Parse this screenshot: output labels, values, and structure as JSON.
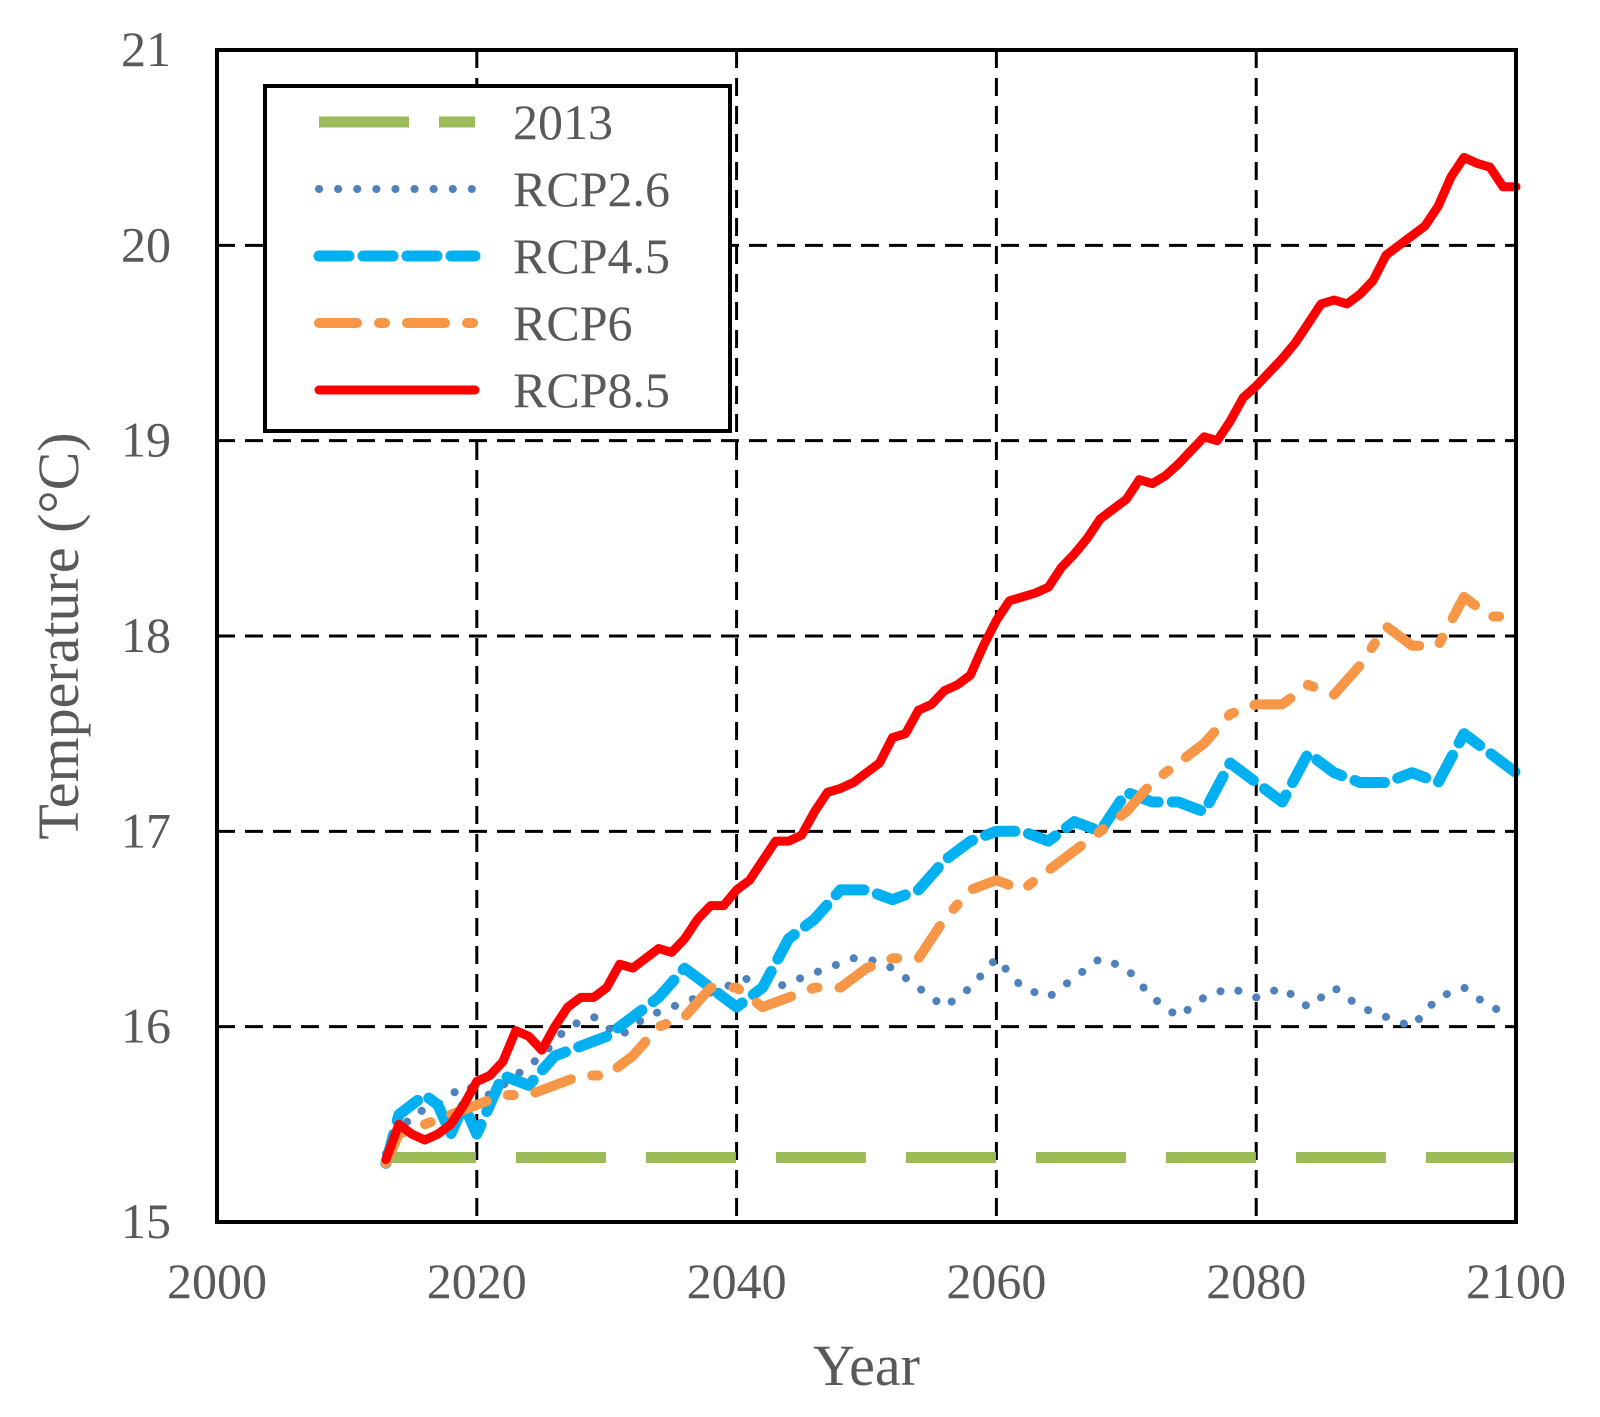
{
  "chart_data": {
    "type": "line",
    "title": "",
    "xlabel": "Year",
    "ylabel": "Temperature (°C)",
    "xlim": [
      2000,
      2100
    ],
    "ylim": [
      15,
      21
    ],
    "xticks": [
      2000,
      2020,
      2040,
      2060,
      2080,
      2100
    ],
    "yticks": [
      15,
      16,
      17,
      18,
      19,
      20,
      21
    ],
    "grid": true,
    "legend_position": "top-left",
    "series": [
      {
        "name": "2013",
        "color": "#9BBB59",
        "dash": "long-dash",
        "x": [
          2013,
          2100
        ],
        "y": [
          15.33,
          15.33
        ]
      },
      {
        "name": "RCP2.6",
        "color": "#4F81BD",
        "dash": "dotted",
        "x": [
          2013,
          2015,
          2017,
          2019,
          2021,
          2023,
          2025,
          2027,
          2029,
          2031,
          2033,
          2035,
          2037,
          2039,
          2041,
          2043,
          2045,
          2047,
          2049,
          2050,
          2052,
          2054,
          2056,
          2058,
          2060,
          2062,
          2064,
          2066,
          2068,
          2070,
          2072,
          2074,
          2076,
          2078,
          2080,
          2082,
          2084,
          2086,
          2088,
          2090,
          2092,
          2094,
          2096,
          2098,
          2099
        ],
        "y": [
          15.35,
          15.55,
          15.6,
          15.7,
          15.65,
          15.75,
          15.85,
          16.0,
          16.05,
          15.95,
          16.05,
          16.1,
          16.15,
          16.2,
          16.25,
          16.2,
          16.25,
          16.3,
          16.35,
          16.35,
          16.3,
          16.2,
          16.1,
          16.2,
          16.35,
          16.2,
          16.15,
          16.25,
          16.35,
          16.3,
          16.15,
          16.05,
          16.15,
          16.2,
          16.15,
          16.2,
          16.1,
          16.2,
          16.1,
          16.05,
          16.0,
          16.15,
          16.2,
          16.1,
          16.08
        ]
      },
      {
        "name": "RCP4.5",
        "color": "#00B0F0",
        "dash": "dashed",
        "x": [
          2013,
          2014,
          2016,
          2017,
          2018,
          2019,
          2020,
          2022,
          2024,
          2026,
          2028,
          2030,
          2032,
          2034,
          2036,
          2038,
          2040,
          2042,
          2044,
          2046,
          2048,
          2050,
          2052,
          2054,
          2056,
          2058,
          2060,
          2062,
          2064,
          2066,
          2068,
          2070,
          2072,
          2074,
          2076,
          2078,
          2080,
          2082,
          2084,
          2086,
          2088,
          2090,
          2092,
          2094,
          2096,
          2098,
          2100
        ],
        "y": [
          15.3,
          15.55,
          15.65,
          15.6,
          15.45,
          15.6,
          15.45,
          15.75,
          15.7,
          15.85,
          15.9,
          15.95,
          16.05,
          16.15,
          16.3,
          16.2,
          16.1,
          16.2,
          16.45,
          16.55,
          16.7,
          16.7,
          16.65,
          16.7,
          16.85,
          16.95,
          17.0,
          17.0,
          16.95,
          17.05,
          17.0,
          17.2,
          17.15,
          17.15,
          17.1,
          17.35,
          17.25,
          17.15,
          17.4,
          17.3,
          17.25,
          17.25,
          17.3,
          17.25,
          17.5,
          17.4,
          17.3
        ]
      },
      {
        "name": "RCP6",
        "color": "#F79646",
        "dash": "dash-dot",
        "x": [
          2013,
          2014,
          2016,
          2018,
          2020,
          2022,
          2024,
          2026,
          2028,
          2030,
          2032,
          2034,
          2036,
          2038,
          2040,
          2042,
          2044,
          2046,
          2048,
          2050,
          2052,
          2054,
          2056,
          2058,
          2060,
          2062,
          2064,
          2066,
          2068,
          2070,
          2072,
          2074,
          2076,
          2078,
          2080,
          2082,
          2084,
          2086,
          2088,
          2090,
          2092,
          2094,
          2096,
          2098,
          2099
        ],
        "y": [
          15.3,
          15.45,
          15.5,
          15.55,
          15.6,
          15.65,
          15.65,
          15.7,
          15.75,
          15.75,
          15.85,
          16.0,
          16.05,
          16.2,
          16.2,
          16.1,
          16.15,
          16.2,
          16.2,
          16.3,
          16.35,
          16.35,
          16.55,
          16.7,
          16.75,
          16.7,
          16.8,
          16.9,
          17.0,
          17.1,
          17.25,
          17.35,
          17.45,
          17.6,
          17.65,
          17.65,
          17.75,
          17.7,
          17.85,
          18.05,
          17.95,
          17.95,
          18.2,
          18.1,
          18.1
        ]
      },
      {
        "name": "RCP8.5",
        "color": "#FF0000",
        "dash": "solid",
        "x": [
          2013,
          2014,
          2015,
          2016,
          2017,
          2018,
          2019,
          2020,
          2021,
          2022,
          2023,
          2024,
          2025,
          2026,
          2027,
          2028,
          2029,
          2030,
          2031,
          2032,
          2033,
          2034,
          2035,
          2036,
          2037,
          2038,
          2039,
          2040,
          2041,
          2042,
          2043,
          2044,
          2045,
          2046,
          2047,
          2048,
          2049,
          2050,
          2051,
          2052,
          2053,
          2054,
          2055,
          2056,
          2057,
          2058,
          2059,
          2060,
          2061,
          2062,
          2063,
          2064,
          2065,
          2066,
          2067,
          2068,
          2069,
          2070,
          2071,
          2072,
          2073,
          2074,
          2075,
          2076,
          2077,
          2078,
          2079,
          2080,
          2081,
          2082,
          2083,
          2084,
          2085,
          2086,
          2087,
          2088,
          2089,
          2090,
          2091,
          2092,
          2093,
          2094,
          2095,
          2096,
          2097,
          2098,
          2099,
          2100
        ],
        "y": [
          15.32,
          15.5,
          15.45,
          15.42,
          15.45,
          15.5,
          15.6,
          15.72,
          15.75,
          15.82,
          15.98,
          15.95,
          15.88,
          16.0,
          16.1,
          16.15,
          16.15,
          16.2,
          16.32,
          16.3,
          16.35,
          16.4,
          16.38,
          16.45,
          16.55,
          16.62,
          16.62,
          16.7,
          16.75,
          16.85,
          16.95,
          16.95,
          16.98,
          17.1,
          17.2,
          17.22,
          17.25,
          17.3,
          17.35,
          17.48,
          17.5,
          17.62,
          17.65,
          17.72,
          17.75,
          17.8,
          17.95,
          18.08,
          18.18,
          18.2,
          18.22,
          18.25,
          18.35,
          18.42,
          18.5,
          18.6,
          18.65,
          18.7,
          18.8,
          18.78,
          18.82,
          18.88,
          18.95,
          19.02,
          19.0,
          19.1,
          19.22,
          19.28,
          19.35,
          19.42,
          19.5,
          19.6,
          19.7,
          19.72,
          19.7,
          19.75,
          19.82,
          19.95,
          20.0,
          20.05,
          20.1,
          20.2,
          20.35,
          20.45,
          20.42,
          20.4,
          20.3,
          20.3
        ]
      }
    ]
  }
}
